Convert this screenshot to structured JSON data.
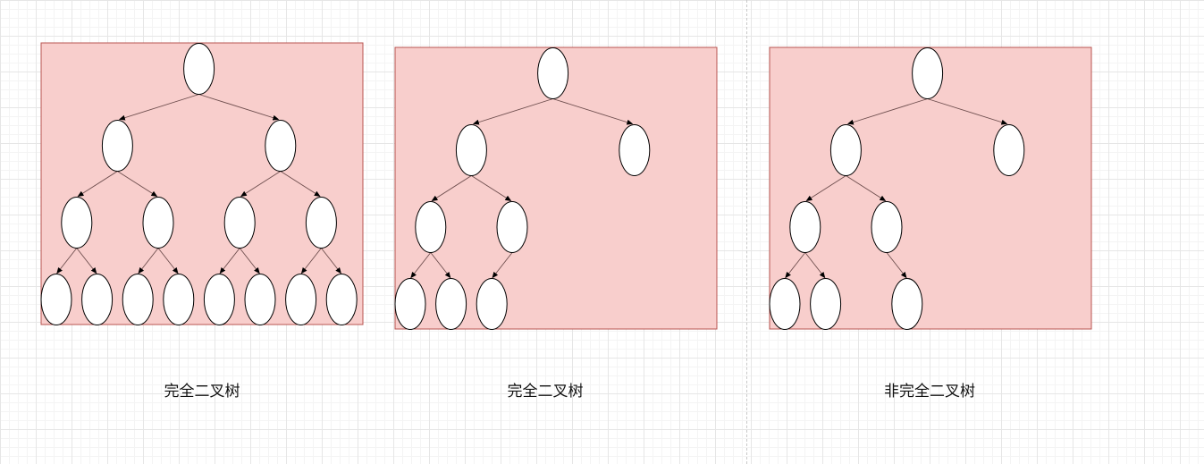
{
  "colors": {
    "panel_fill": "#f8cecc",
    "panel_border": "#b85450",
    "node_fill": "#ffffff",
    "node_stroke": "#000000",
    "edge_stroke": "#6e4e4e"
  },
  "icons": {
    "node": "ellipse-node-icon",
    "edge": "arrow-edge-icon"
  },
  "diagrams": [
    {
      "caption": "完全二叉树",
      "levels": 4,
      "nodes": [
        "n1",
        "n2",
        "n3",
        "n4",
        "n5",
        "n6",
        "n7",
        "n8",
        "n9",
        "n10",
        "n11",
        "n12",
        "n13",
        "n14",
        "n15"
      ],
      "edges": [
        [
          "n1",
          "n2"
        ],
        [
          "n1",
          "n3"
        ],
        [
          "n2",
          "n4"
        ],
        [
          "n2",
          "n5"
        ],
        [
          "n3",
          "n6"
        ],
        [
          "n3",
          "n7"
        ],
        [
          "n4",
          "n8"
        ],
        [
          "n4",
          "n9"
        ],
        [
          "n5",
          "n10"
        ],
        [
          "n5",
          "n11"
        ],
        [
          "n6",
          "n12"
        ],
        [
          "n6",
          "n13"
        ],
        [
          "n7",
          "n14"
        ],
        [
          "n7",
          "n15"
        ]
      ]
    },
    {
      "caption": "完全二叉树",
      "levels": 4,
      "nodes": [
        "n1",
        "n2",
        "n3",
        "n4",
        "n5",
        "n8",
        "n9",
        "n10"
      ],
      "edges": [
        [
          "n1",
          "n2"
        ],
        [
          "n1",
          "n3"
        ],
        [
          "n2",
          "n4"
        ],
        [
          "n2",
          "n5"
        ],
        [
          "n4",
          "n8"
        ],
        [
          "n4",
          "n9"
        ],
        [
          "n5",
          "n10"
        ]
      ]
    },
    {
      "caption": "非完全二叉树",
      "levels": 4,
      "nodes": [
        "n1",
        "n2",
        "n3",
        "n4",
        "n5",
        "n8",
        "n9",
        "n11"
      ],
      "edges": [
        [
          "n1",
          "n2"
        ],
        [
          "n1",
          "n3"
        ],
        [
          "n2",
          "n4"
        ],
        [
          "n2",
          "n5"
        ],
        [
          "n4",
          "n8"
        ],
        [
          "n4",
          "n9"
        ],
        [
          "n5",
          "n11"
        ]
      ]
    }
  ]
}
